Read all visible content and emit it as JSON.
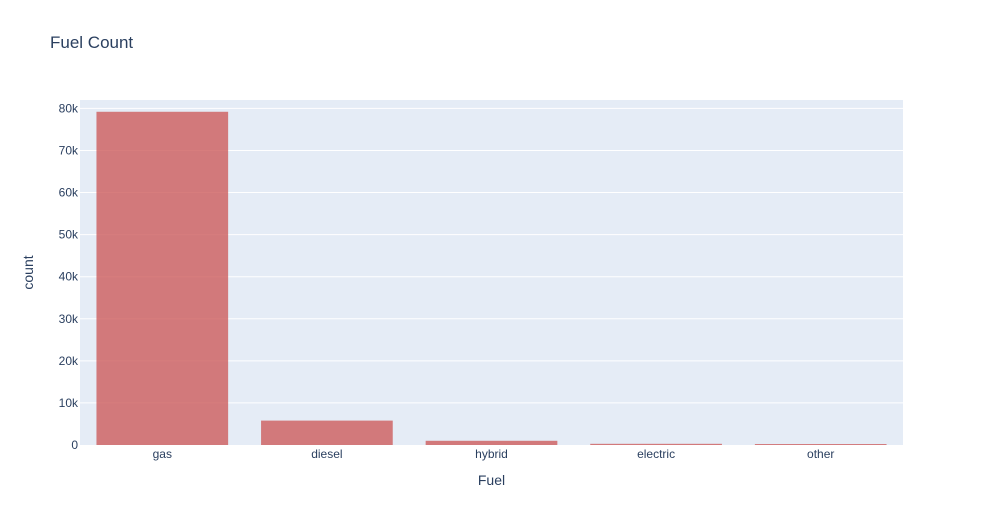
{
  "chart_data": {
    "type": "bar",
    "title": "Fuel Count",
    "xlabel": "Fuel",
    "ylabel": "count",
    "categories": [
      "gas",
      "diesel",
      "hybrid",
      "electric",
      "other"
    ],
    "values": [
      79200,
      5800,
      1000,
      280,
      230
    ],
    "ylim": [
      0,
      82000
    ],
    "yticks": [
      {
        "value": 0,
        "label": "0"
      },
      {
        "value": 10000,
        "label": "10k"
      },
      {
        "value": 20000,
        "label": "20k"
      },
      {
        "value": 30000,
        "label": "30k"
      },
      {
        "value": 40000,
        "label": "40k"
      },
      {
        "value": 50000,
        "label": "50k"
      },
      {
        "value": 60000,
        "label": "60k"
      },
      {
        "value": 70000,
        "label": "70k"
      },
      {
        "value": 80000,
        "label": "80k"
      }
    ],
    "grid": true,
    "bar_color": "#cd5c5c",
    "bar_opacity": 0.8,
    "plot_background": "#e5ecf6",
    "grid_color": "#ffffff",
    "text_color": "#2a3f5f"
  }
}
